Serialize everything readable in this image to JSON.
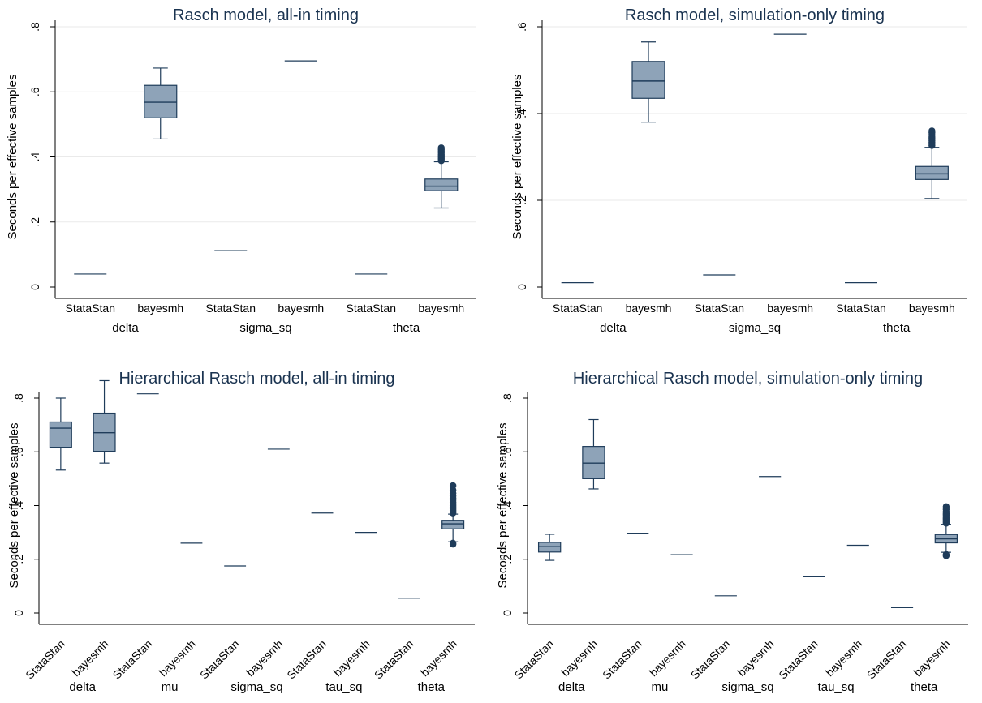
{
  "colors": {
    "box_fill": "#8ea3b8",
    "box_stroke": "#1f3c5a",
    "outlier": "#1f3c5a",
    "title": "#1a3350",
    "grid": "#eaeaea",
    "axis": "#000000"
  },
  "chart_data": [
    {
      "type": "box",
      "title": "Rasch model, all-in timing",
      "ylabel": "Seconds per effective samples",
      "ylim": [
        0,
        0.8
      ],
      "yticks": [
        0,
        0.2,
        0.4,
        0.6,
        0.8
      ],
      "ytick_labels": [
        "0",
        ".2",
        ".4",
        ".6",
        ".8"
      ],
      "grid": true,
      "rotated_labels": false,
      "categories": [
        "StataStan",
        "bayesmh"
      ],
      "groups": [
        {
          "name": "delta",
          "boxes": [
            {
              "value": 0.04
            },
            {
              "q1": 0.52,
              "median": 0.568,
              "q3": 0.62,
              "whisker_low": 0.455,
              "whisker_high": 0.673
            }
          ]
        },
        {
          "name": "sigma_sq",
          "boxes": [
            {
              "value": 0.112
            },
            {
              "value": 0.695
            }
          ]
        },
        {
          "name": "theta",
          "boxes": [
            {
              "value": 0.04
            },
            {
              "q1": 0.296,
              "median": 0.31,
              "q3": 0.332,
              "whisker_low": 0.243,
              "whisker_high": 0.385,
              "outliers": [
                0.388,
                0.392,
                0.396,
                0.4,
                0.404,
                0.408,
                0.413,
                0.418,
                0.423,
                0.428
              ]
            }
          ]
        }
      ]
    },
    {
      "type": "box",
      "title": "Rasch model, simulation-only timing",
      "ylabel": "Seconds per effective samples",
      "ylim": [
        0,
        0.6
      ],
      "yticks": [
        0,
        0.2,
        0.4,
        0.6
      ],
      "ytick_labels": [
        "0",
        ".2",
        ".4",
        ".6"
      ],
      "grid": true,
      "rotated_labels": false,
      "categories": [
        "StataStan",
        "bayesmh"
      ],
      "groups": [
        {
          "name": "delta",
          "boxes": [
            {
              "value": 0.01
            },
            {
              "q1": 0.435,
              "median": 0.475,
              "q3": 0.52,
              "whisker_low": 0.38,
              "whisker_high": 0.565
            }
          ]
        },
        {
          "name": "sigma_sq",
          "boxes": [
            {
              "value": 0.028
            },
            {
              "value": 0.583
            }
          ]
        },
        {
          "name": "theta",
          "boxes": [
            {
              "value": 0.01
            },
            {
              "q1": 0.248,
              "median": 0.261,
              "q3": 0.278,
              "whisker_low": 0.204,
              "whisker_high": 0.322,
              "outliers": [
                0.326,
                0.33,
                0.334,
                0.338,
                0.342,
                0.346,
                0.351,
                0.356,
                0.36
              ]
            }
          ]
        }
      ]
    },
    {
      "type": "box",
      "title": "Hierarchical Rasch model, all-in timing",
      "ylabel": "Seconds per effective samples",
      "ylim": [
        0,
        0.8
      ],
      "yticks": [
        0,
        0.2,
        0.4,
        0.6,
        0.8
      ],
      "ytick_labels": [
        "0",
        ".2",
        ".4",
        ".6",
        ".8"
      ],
      "grid": false,
      "rotated_labels": true,
      "categories": [
        "StataStan",
        "bayesmh"
      ],
      "groups": [
        {
          "name": "delta",
          "boxes": [
            {
              "q1": 0.617,
              "median": 0.688,
              "q3": 0.711,
              "whisker_low": 0.532,
              "whisker_high": 0.8
            },
            {
              "q1": 0.602,
              "median": 0.671,
              "q3": 0.744,
              "whisker_low": 0.558,
              "whisker_high": 0.865
            }
          ]
        },
        {
          "name": "mu",
          "boxes": [
            {
              "value": 0.816
            },
            {
              "value": 0.26
            }
          ]
        },
        {
          "name": "sigma_sq",
          "boxes": [
            {
              "value": 0.175
            },
            {
              "value": 0.61
            }
          ]
        },
        {
          "name": "tau_sq",
          "boxes": [
            {
              "value": 0.372
            },
            {
              "value": 0.3
            }
          ]
        },
        {
          "name": "theta",
          "boxes": [
            {
              "value": 0.055
            },
            {
              "q1": 0.313,
              "median": 0.332,
              "q3": 0.345,
              "whisker_low": 0.265,
              "whisker_high": 0.368,
              "outliers": [
                0.256,
                0.26,
                0.372,
                0.377,
                0.382,
                0.388,
                0.394,
                0.4,
                0.406,
                0.413,
                0.42,
                0.428,
                0.436,
                0.446,
                0.458,
                0.474
              ]
            }
          ]
        }
      ]
    },
    {
      "type": "box",
      "title": "Hierarchical Rasch model, simulation-only timing",
      "ylabel": "Seconds per effective samples",
      "ylim": [
        0,
        0.8
      ],
      "yticks": [
        0,
        0.2,
        0.4,
        0.6,
        0.8
      ],
      "ytick_labels": [
        "0",
        ".2",
        ".4",
        ".6",
        ".8"
      ],
      "grid": false,
      "rotated_labels": true,
      "categories": [
        "StataStan",
        "bayesmh"
      ],
      "groups": [
        {
          "name": "delta",
          "boxes": [
            {
              "q1": 0.227,
              "median": 0.247,
              "q3": 0.263,
              "whisker_low": 0.196,
              "whisker_high": 0.293
            },
            {
              "q1": 0.5,
              "median": 0.558,
              "q3": 0.62,
              "whisker_low": 0.462,
              "whisker_high": 0.72
            }
          ]
        },
        {
          "name": "mu",
          "boxes": [
            {
              "value": 0.297
            },
            {
              "value": 0.217
            }
          ]
        },
        {
          "name": "sigma_sq",
          "boxes": [
            {
              "value": 0.064
            },
            {
              "value": 0.508
            }
          ]
        },
        {
          "name": "tau_sq",
          "boxes": [
            {
              "value": 0.137
            },
            {
              "value": 0.252
            }
          ]
        },
        {
          "name": "theta",
          "boxes": [
            {
              "value": 0.02
            },
            {
              "q1": 0.261,
              "median": 0.276,
              "q3": 0.292,
              "whisker_low": 0.226,
              "whisker_high": 0.33,
              "outliers": [
                0.213,
                0.218,
                0.334,
                0.338,
                0.343,
                0.348,
                0.353,
                0.358,
                0.364,
                0.37,
                0.377,
                0.386,
                0.396
              ]
            }
          ]
        }
      ]
    }
  ]
}
